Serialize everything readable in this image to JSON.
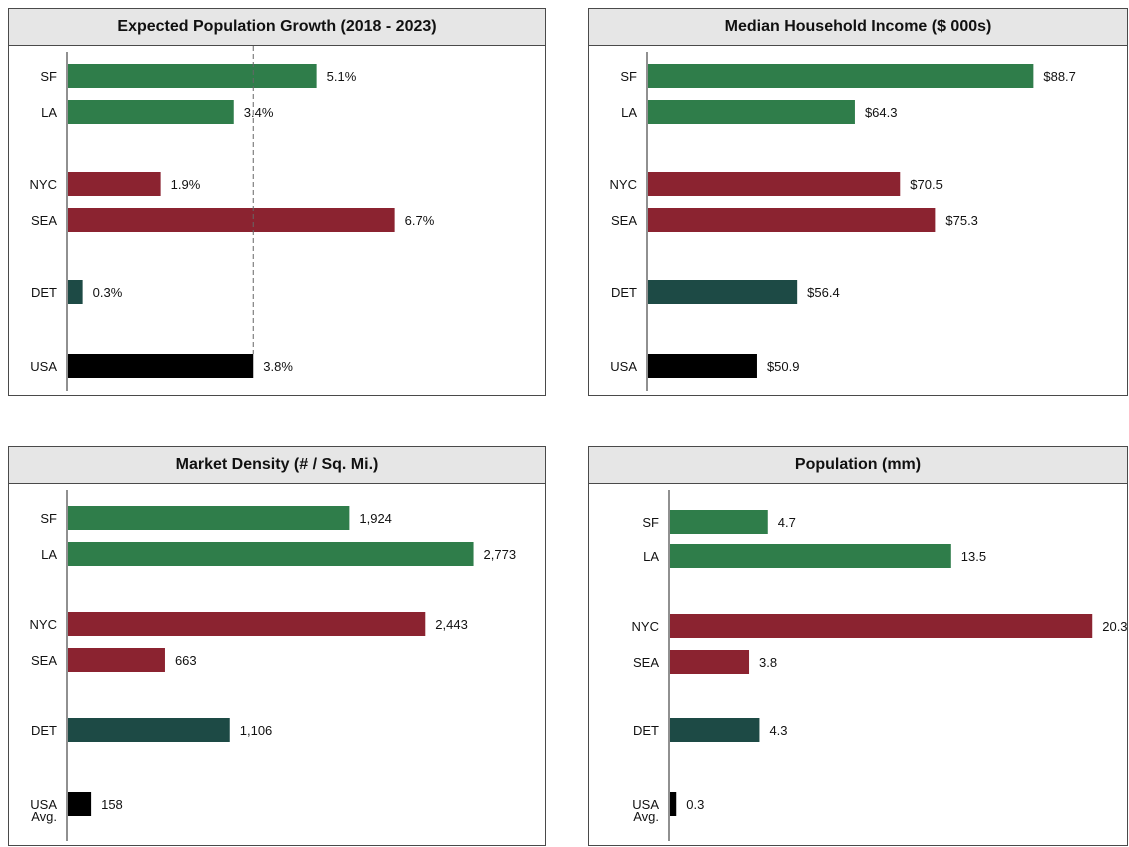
{
  "colors": {
    "SF": "#2f7d4a",
    "LA": "#2f7d4a",
    "NYC": "#8b2330",
    "SEA": "#8b2330",
    "DET": "#1d4a45",
    "USA": "#000000",
    "USA Avg.": "#000000"
  },
  "chart_data": [
    {
      "type": "bar",
      "orientation": "horizontal",
      "title": "Expected Population Growth (2018 - 2023)",
      "categories": [
        "SF",
        "LA",
        "NYC",
        "SEA",
        "DET",
        "USA"
      ],
      "values": [
        5.1,
        3.4,
        1.9,
        6.7,
        0.3,
        3.8
      ],
      "labels": [
        "5.1%",
        "3.4%",
        "1.9%",
        "6.7%",
        "0.3%",
        "3.8%"
      ],
      "xlim": [
        0,
        9.6
      ],
      "reference_line": 3.8,
      "reference_line_style": "dashed"
    },
    {
      "type": "bar",
      "orientation": "horizontal",
      "title": "Median Household Income ($ 000s)",
      "categories": [
        "SF",
        "LA",
        "NYC",
        "SEA",
        "DET",
        "USA"
      ],
      "values": [
        88.7,
        64.3,
        70.5,
        75.3,
        56.4,
        50.9
      ],
      "labels": [
        "$88.7",
        "$64.3",
        "$70.5",
        "$75.3",
        "$56.4",
        "$50.9"
      ],
      "xlim": [
        36,
        100
      ]
    },
    {
      "type": "bar",
      "orientation": "horizontal",
      "title": "Market Density (# / Sq. Mi.)",
      "categories": [
        "SF",
        "LA",
        "NYC",
        "SEA",
        "DET",
        "USA Avg."
      ],
      "values": [
        1924,
        2773,
        2443,
        663,
        1106,
        158
      ],
      "labels": [
        "1,924",
        "2,773",
        "2,443",
        "663",
        "1,106",
        "158"
      ],
      "xlim": [
        0,
        3200
      ]
    },
    {
      "type": "bar",
      "orientation": "horizontal",
      "title": "Population (mm)",
      "categories": [
        "SF",
        "LA",
        "NYC",
        "SEA",
        "DET",
        "USA Avg."
      ],
      "values": [
        4.7,
        13.5,
        20.3,
        3.8,
        4.3,
        0.3
      ],
      "labels": [
        "4.7",
        "13.5",
        "20.3",
        "3.8",
        "4.3",
        "0.3"
      ],
      "xlim": [
        0,
        22.5
      ]
    }
  ]
}
